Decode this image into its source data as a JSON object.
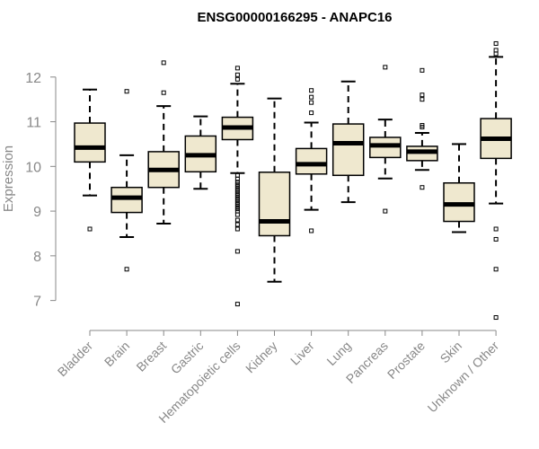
{
  "chart_data": {
    "type": "boxplot",
    "title": "ENSG00000166295 - ANAPC16",
    "xlabel": "",
    "ylabel": "Expression",
    "ylim": [
      6.45,
      12.9
    ],
    "yticks": [
      7,
      8,
      9,
      10,
      11,
      12
    ],
    "box_color": "#efe8cf",
    "categories": [
      "Bladder",
      "Brain",
      "Breast",
      "Gastric",
      "Hematopoietic cells",
      "Kidney",
      "Liver",
      "Lung",
      "Pancreas",
      "Prostate",
      "Skin",
      "Unknown / Other"
    ],
    "boxes": [
      {
        "name": "Bladder",
        "q1": 10.1,
        "median": 10.42,
        "q3": 10.97,
        "whisker_low": 9.35,
        "whisker_high": 11.72,
        "outliers": [
          8.6
        ]
      },
      {
        "name": "Brain",
        "q1": 8.97,
        "median": 9.3,
        "q3": 9.53,
        "whisker_low": 8.42,
        "whisker_high": 10.25,
        "outliers": [
          7.7,
          11.68
        ]
      },
      {
        "name": "Breast",
        "q1": 9.53,
        "median": 9.92,
        "q3": 10.33,
        "whisker_low": 8.72,
        "whisker_high": 11.35,
        "outliers": [
          11.65,
          12.32
        ]
      },
      {
        "name": "Gastric",
        "q1": 9.88,
        "median": 10.25,
        "q3": 10.68,
        "whisker_low": 9.5,
        "whisker_high": 11.12,
        "outliers": []
      },
      {
        "name": "Hematopoietic cells",
        "q1": 10.6,
        "median": 10.87,
        "q3": 11.1,
        "whisker_low": 9.85,
        "whisker_high": 11.85,
        "outliers": [
          12.2,
          12.05,
          11.95,
          9.8,
          9.72,
          9.65,
          9.6,
          9.55,
          9.5,
          9.45,
          9.4,
          9.35,
          9.3,
          9.25,
          9.2,
          9.15,
          9.1,
          9.05,
          9.0,
          8.92,
          8.8,
          8.7,
          8.6,
          8.1,
          6.92
        ]
      },
      {
        "name": "Kidney",
        "q1": 8.45,
        "median": 8.77,
        "q3": 9.87,
        "whisker_low": 7.42,
        "whisker_high": 11.52,
        "outliers": []
      },
      {
        "name": "Liver",
        "q1": 9.83,
        "median": 10.05,
        "q3": 10.4,
        "whisker_low": 9.03,
        "whisker_high": 10.98,
        "outliers": [
          8.56,
          11.2,
          11.43,
          11.55,
          11.7
        ]
      },
      {
        "name": "Lung",
        "q1": 9.8,
        "median": 10.52,
        "q3": 10.95,
        "whisker_low": 9.2,
        "whisker_high": 11.9,
        "outliers": []
      },
      {
        "name": "Pancreas",
        "q1": 10.2,
        "median": 10.47,
        "q3": 10.65,
        "whisker_low": 9.73,
        "whisker_high": 11.05,
        "outliers": [
          9.0,
          12.22
        ]
      },
      {
        "name": "Prostate",
        "q1": 10.13,
        "median": 10.33,
        "q3": 10.45,
        "whisker_low": 9.92,
        "whisker_high": 10.75,
        "outliers": [
          9.53,
          10.88,
          10.92,
          11.5,
          11.6,
          12.15
        ]
      },
      {
        "name": "Skin",
        "q1": 8.77,
        "median": 9.15,
        "q3": 9.63,
        "whisker_low": 8.53,
        "whisker_high": 10.5,
        "outliers": []
      },
      {
        "name": "Unknown / Other",
        "q1": 10.18,
        "median": 10.62,
        "q3": 11.07,
        "whisker_low": 9.17,
        "whisker_high": 12.45,
        "outliers": [
          12.52,
          12.6,
          12.75,
          8.6,
          8.37,
          7.7,
          6.62
        ]
      }
    ]
  }
}
